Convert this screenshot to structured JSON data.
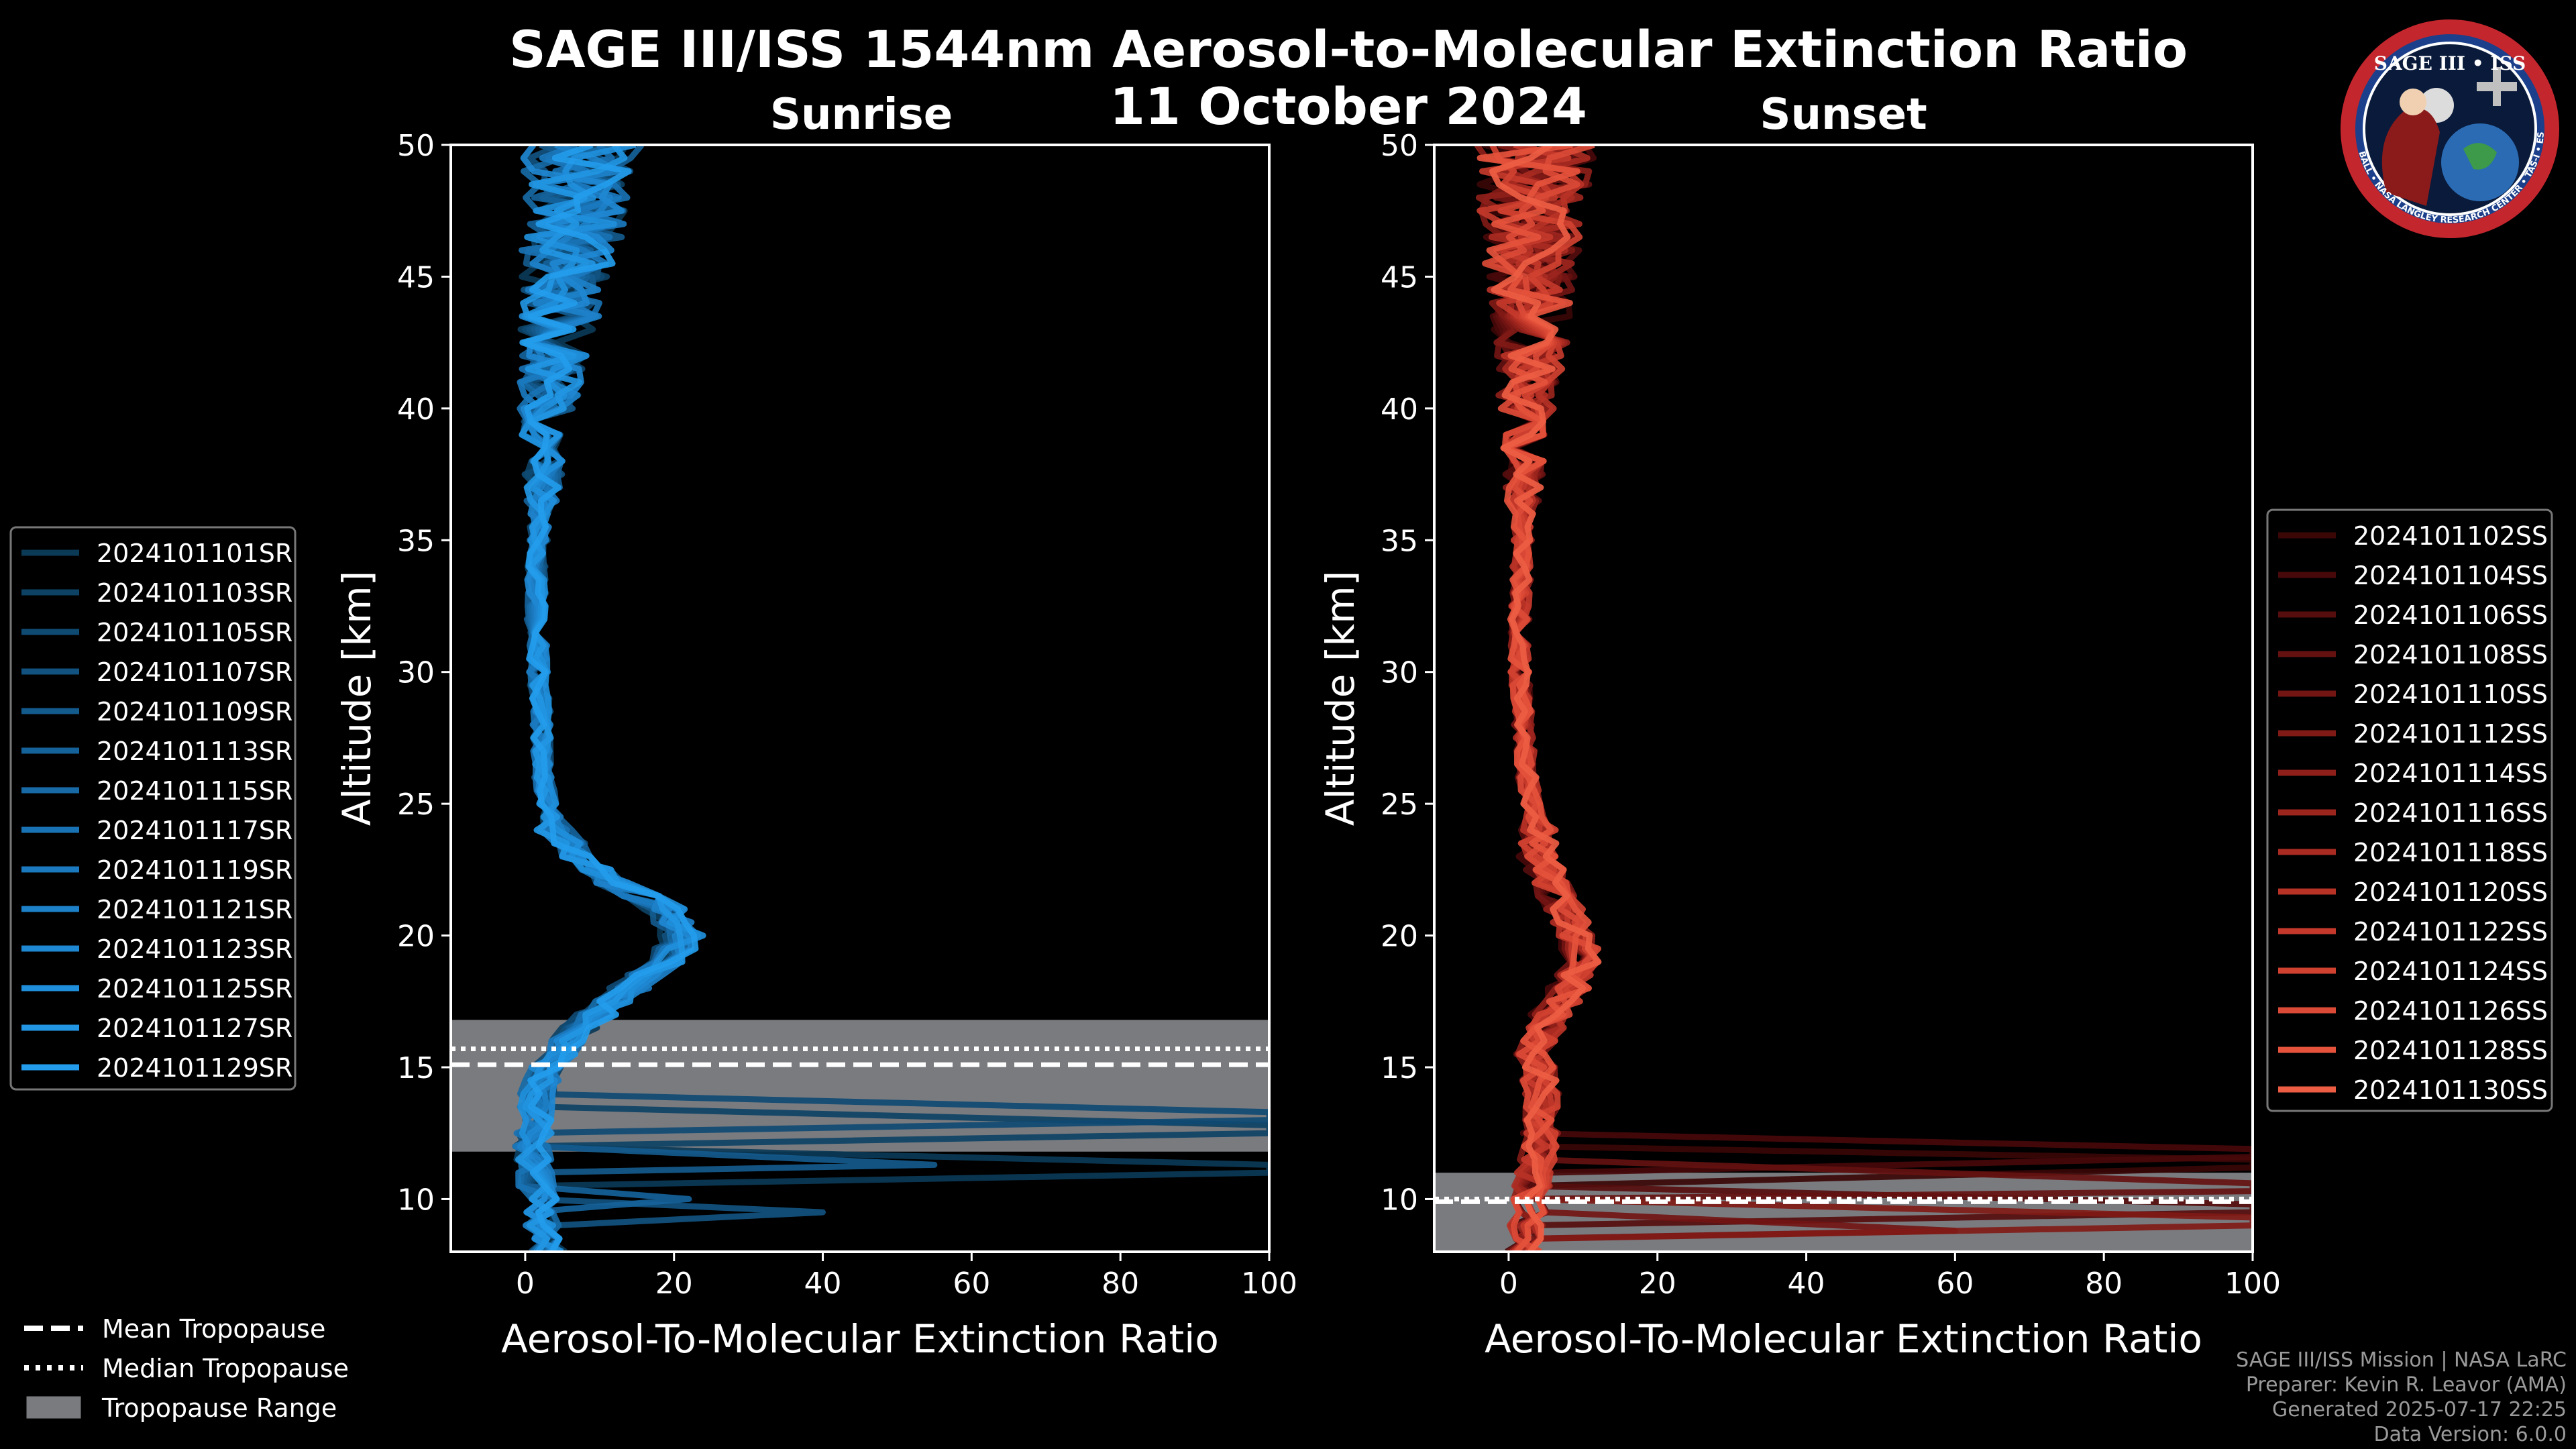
{
  "title": "SAGE III/ISS 1544nm Aerosol-to-Molecular Extinction Ratio",
  "date": "11 October 2024",
  "logo": {
    "text_top": "SAGE III • ISS",
    "ring_text": "BALL • NASA LANGLEY RESEARCH CENTER • TAS-I • ESA"
  },
  "chart_data": [
    {
      "type": "line",
      "panel": "Sunrise",
      "title": "Sunrise",
      "xlabel": "Aerosol-To-Molecular Extinction Ratio",
      "ylabel": "Altitude [km]",
      "xlim": [
        -10,
        100
      ],
      "ylim": [
        8,
        50
      ],
      "xticks": [
        0,
        20,
        40,
        60,
        80,
        100
      ],
      "yticks": [
        10,
        15,
        20,
        25,
        30,
        35,
        40,
        45,
        50
      ],
      "tropopause": {
        "mean": 15.1,
        "median": 15.7,
        "range": [
          11.8,
          16.8
        ]
      },
      "base_profile": [
        [
          8,
          3
        ],
        [
          9,
          2.5
        ],
        [
          10,
          1.8
        ],
        [
          11,
          1.2
        ],
        [
          12,
          1.0
        ],
        [
          13,
          1.3
        ],
        [
          14,
          1.8
        ],
        [
          15,
          3
        ],
        [
          16,
          5
        ],
        [
          17,
          8
        ],
        [
          18,
          12
        ],
        [
          19,
          16
        ],
        [
          20,
          18
        ],
        [
          21,
          16
        ],
        [
          22,
          10
        ],
        [
          23,
          6
        ],
        [
          24,
          4
        ],
        [
          25,
          3
        ],
        [
          26,
          2.5
        ],
        [
          27,
          2.3
        ],
        [
          28,
          2.2
        ],
        [
          30,
          1.8
        ],
        [
          32,
          1.5
        ],
        [
          34,
          1.6
        ],
        [
          36,
          2
        ],
        [
          38,
          2.5
        ],
        [
          40,
          3
        ],
        [
          42,
          4
        ],
        [
          44,
          5
        ],
        [
          46,
          6
        ],
        [
          48,
          7
        ],
        [
          50,
          8
        ]
      ],
      "spikes": [
        [
          11.0,
          100
        ],
        [
          12.5,
          100
        ],
        [
          13.0,
          100
        ],
        [
          9.5,
          40
        ],
        [
          11.3,
          55
        ],
        [
          10.0,
          22
        ]
      ],
      "colors": [
        "#0b3a57",
        "#0d4265",
        "#0f4a73",
        "#115280",
        "#135a8d",
        "#15629a",
        "#176aa6",
        "#1972b3",
        "#1b7abf",
        "#1d81c9",
        "#1f88d2",
        "#208fdb",
        "#2296e3",
        "#239ceb"
      ],
      "series": [
        {
          "name": "2024101101SR"
        },
        {
          "name": "2024101103SR"
        },
        {
          "name": "2024101105SR"
        },
        {
          "name": "2024101107SR"
        },
        {
          "name": "2024101109SR"
        },
        {
          "name": "2024101113SR"
        },
        {
          "name": "2024101115SR"
        },
        {
          "name": "2024101117SR"
        },
        {
          "name": "2024101119SR"
        },
        {
          "name": "2024101121SR"
        },
        {
          "name": "2024101123SR"
        },
        {
          "name": "2024101125SR"
        },
        {
          "name": "2024101127SR"
        },
        {
          "name": "2024101129SR"
        }
      ]
    },
    {
      "type": "line",
      "panel": "Sunset",
      "title": "Sunset",
      "xlabel": "Aerosol-To-Molecular Extinction Ratio",
      "ylabel": "Altitude [km]",
      "xlim": [
        -10,
        100
      ],
      "ylim": [
        8,
        50
      ],
      "xticks": [
        0,
        20,
        40,
        60,
        80,
        100
      ],
      "yticks": [
        10,
        15,
        20,
        25,
        30,
        35,
        40,
        45,
        50
      ],
      "tropopause": {
        "mean": 9.9,
        "median": 10.0,
        "range": [
          8.0,
          11.0
        ]
      },
      "base_profile": [
        [
          8,
          2
        ],
        [
          9,
          2.5
        ],
        [
          10,
          3
        ],
        [
          11,
          3.5
        ],
        [
          12,
          4
        ],
        [
          13,
          4.5
        ],
        [
          14,
          4.5
        ],
        [
          15,
          4
        ],
        [
          16,
          5
        ],
        [
          17,
          7
        ],
        [
          18,
          10
        ],
        [
          19,
          12
        ],
        [
          20,
          11
        ],
        [
          21,
          9
        ],
        [
          22,
          7
        ],
        [
          23,
          5
        ],
        [
          24,
          4
        ],
        [
          25,
          3
        ],
        [
          26,
          2.5
        ],
        [
          28,
          2
        ],
        [
          30,
          1.5
        ],
        [
          32,
          1.5
        ],
        [
          34,
          1.8
        ],
        [
          36,
          2
        ],
        [
          38,
          2
        ],
        [
          40,
          2.5
        ],
        [
          42,
          3
        ],
        [
          44,
          3
        ],
        [
          46,
          3
        ],
        [
          48,
          3
        ],
        [
          50,
          4
        ]
      ],
      "spikes": [
        [
          11.2,
          100
        ],
        [
          11.6,
          100
        ],
        [
          9.5,
          100
        ],
        [
          10.3,
          100
        ],
        [
          8.8,
          60
        ],
        [
          9.0,
          100
        ]
      ],
      "colors": [
        "#3a0606",
        "#48090a",
        "#560d0d",
        "#641110",
        "#721513",
        "#801a16",
        "#8e1f1a",
        "#9c251e",
        "#aa2b22",
        "#b83226",
        "#c4392b",
        "#d04130",
        "#db4a36",
        "#e5533c",
        "#ed5d43"
      ],
      "series": [
        {
          "name": "2024101102SS"
        },
        {
          "name": "2024101104SS"
        },
        {
          "name": "2024101106SS"
        },
        {
          "name": "2024101108SS"
        },
        {
          "name": "2024101110SS"
        },
        {
          "name": "2024101112SS"
        },
        {
          "name": "2024101114SS"
        },
        {
          "name": "2024101116SS"
        },
        {
          "name": "2024101118SS"
        },
        {
          "name": "2024101120SS"
        },
        {
          "name": "2024101122SS"
        },
        {
          "name": "2024101124SS"
        },
        {
          "name": "2024101126SS"
        },
        {
          "name": "2024101128SS"
        },
        {
          "name": "2024101130SS"
        }
      ]
    }
  ],
  "tropopause_legend": [
    {
      "label": "Mean Tropopause",
      "style": "dashed"
    },
    {
      "label": "Median Tropopause",
      "style": "dotted"
    },
    {
      "label": "Tropopause Range",
      "style": "patch"
    }
  ],
  "credits": [
    "SAGE III/ISS Mission | NASA LaRC",
    "Preparer: Kevin R. Leavor (AMA)",
    "Generated 2025-07-17 22:25",
    "Data Version: 6.0.0"
  ]
}
